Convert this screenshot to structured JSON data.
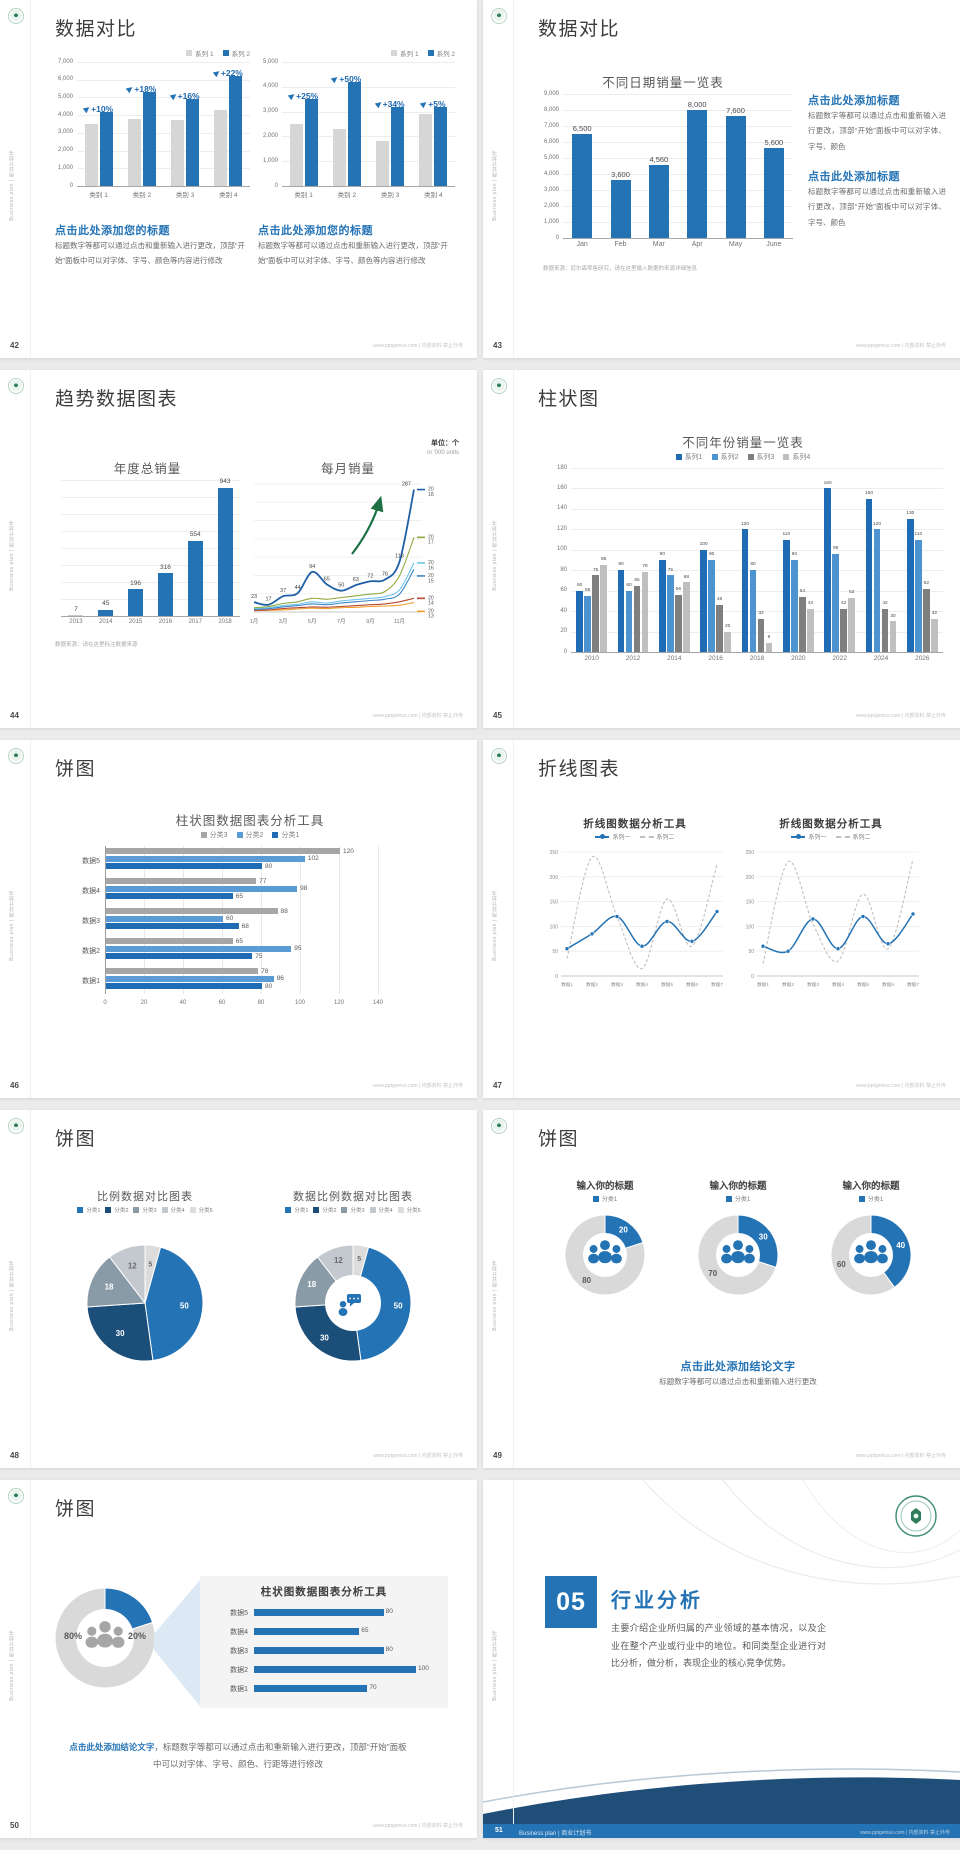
{
  "footer": {
    "site": "www.pptgenius.com | 内部资料 禁止外传"
  },
  "side_text": "Business plan | 商业计划书",
  "slides": {
    "s42": {
      "page": "42",
      "title": "数据对比",
      "legend": [
        "系列 1",
        "系列 2"
      ],
      "block_title": "点击此处添加您的标题",
      "block_body": "标题数字等都可以通过点击和重新输入进行更改，顶部“开始”面板中可以对字体、字号、颜色等内容进行修改",
      "chart_left": {
        "type": "column",
        "ymax": 7000,
        "yticks": [
          "7,000",
          "6,000",
          "5,000",
          "4,000",
          "3,000",
          "2,000",
          "1,000",
          "0"
        ],
        "categories": [
          "类别 1",
          "类别 2",
          "类别 3",
          "类别 4"
        ],
        "series": [
          {
            "name": "系列 1",
            "values": [
              3500,
              3800,
              3700,
              4300
            ]
          },
          {
            "name": "系列 2",
            "values": [
              4200,
              5300,
              4900,
              6200
            ]
          }
        ],
        "annotations": [
          "+10%",
          "+18%",
          "+16%",
          "+22%"
        ]
      },
      "chart_right": {
        "type": "column",
        "ymax": 5000,
        "yticks": [
          "5,000",
          "4,000",
          "3,000",
          "2,000",
          "1,000",
          "0"
        ],
        "categories": [
          "类别 1",
          "类别 2",
          "类别 3",
          "类别 4"
        ],
        "series": [
          {
            "name": "系列 1",
            "values": [
              2500,
              2300,
              1800,
              2900
            ]
          },
          {
            "name": "系列 2",
            "values": [
              3500,
              4200,
              3200,
              3200
            ]
          }
        ],
        "annotations": [
          "+25%",
          "+50%",
          "+34%",
          "+5%"
        ]
      }
    },
    "s43": {
      "page": "43",
      "title": "数据对比",
      "chart": {
        "type": "column",
        "title": "不同日期销量一览表",
        "ymax": 9000,
        "yticks": [
          "9,000",
          "8,000",
          "7,000",
          "6,000",
          "5,000",
          "4,000",
          "3,000",
          "2,000",
          "1,000",
          "0"
        ],
        "categories": [
          "Jan",
          "Feb",
          "Mar",
          "Apr",
          "May",
          "June"
        ],
        "values": [
          6500,
          3600,
          4560,
          8000,
          7600,
          5600
        ],
        "labels": [
          "6,500",
          "3,600",
          "4,560",
          "8,000",
          "7,600",
          "5,600"
        ]
      },
      "source": "数据来源：尼尔森零售研究，请在这里输入数据的来源详细信息",
      "blocks": [
        {
          "title": "点击此处添加标题",
          "body": "标题数字等都可以通过点击和重新输入进行更改，顶部“开始”面板中可以对字体、字号、颜色"
        },
        {
          "title": "点击此处添加标题",
          "body": "标题数字等都可以通过点击和重新输入进行更改，顶部“开始”面板中可以对字体、字号、颜色"
        }
      ]
    },
    "s44": {
      "page": "44",
      "title": "趋势数据图表",
      "unit_cn": "单位：个",
      "unit_en": "in '000 units",
      "chart_left": {
        "type": "column",
        "title": "年度总销量",
        "categories": [
          "2013",
          "2014",
          "2015",
          "2016",
          "2017",
          "2018"
        ],
        "values": [
          7,
          45,
          196,
          316,
          554,
          943
        ]
      },
      "chart_right": {
        "type": "line",
        "title": "每月销量",
        "x_labels": [
          "1月",
          "3月",
          "5月",
          "7月",
          "9月",
          "11月"
        ],
        "series": [
          {
            "name": "2018",
            "values": [
              23,
              17,
              37,
              44,
              94,
              65,
              50,
              63,
              72,
              76,
              118,
              287
            ]
          },
          {
            "name": "2017",
            "values": [
              10,
              13,
              20,
              24,
              32,
              30,
              34,
              38,
              42,
              48,
              85,
              175
            ]
          },
          {
            "name": "2016",
            "values": [
              8,
              10,
              15,
              18,
              24,
              21,
              26,
              29,
              32,
              36,
              52,
              115
            ]
          },
          {
            "name": "2015",
            "values": [
              6,
              8,
              12,
              15,
              19,
              17,
              21,
              24,
              27,
              30,
              42,
              100
            ]
          },
          {
            "name": "2014",
            "values": [
              4,
              5,
              8,
              10,
              12,
              11,
              13,
              15,
              17,
              19,
              24,
              32
            ]
          },
          {
            "name": "2013",
            "values": [
              3,
              4,
              5,
              7,
              9,
              8,
              10,
              11,
              13,
              14,
              16,
              22
            ]
          }
        ]
      },
      "source": "数据来源：请在这里标注数据来源"
    },
    "s45": {
      "page": "45",
      "title": "柱状图",
      "chart": {
        "type": "column",
        "title": "不同年份销量一览表",
        "legend": [
          "系列1",
          "系列2",
          "系列3",
          "系列4"
        ],
        "ymax": 180,
        "yticks": [
          "180",
          "160",
          "140",
          "120",
          "100",
          "80",
          "60",
          "40",
          "20",
          "0"
        ],
        "categories": [
          "2010",
          "2012",
          "2014",
          "2016",
          "2018",
          "2020",
          "2022",
          "2024",
          "2026"
        ],
        "series": [
          {
            "name": "系列1",
            "values": [
              60,
              80,
              90,
              100,
              120,
              110,
              160,
              150,
              130
            ]
          },
          {
            "name": "系列2",
            "values": [
              55,
              60,
              75,
              90,
              80,
              90,
              96,
              120,
              110
            ]
          },
          {
            "name": "系列3",
            "values": [
              75,
              65,
              56,
              46,
              32,
              54,
              42,
              42,
              62
            ]
          },
          {
            "name": "系列4",
            "values": [
              85,
              78,
              68,
              20,
              9,
              42,
              53,
              30,
              32
            ]
          }
        ]
      }
    },
    "s46": {
      "page": "46",
      "title": "饼图",
      "chart": {
        "type": "hbar",
        "title": "柱状图数据图表分析工具",
        "legend": [
          "分类3",
          "分类2",
          "分类1"
        ],
        "rows": [
          "数据5",
          "数据4",
          "数据3",
          "数据2",
          "数据1"
        ],
        "series": [
          {
            "name": "分类3",
            "values": [
              120,
              77,
              88,
              65,
              78
            ]
          },
          {
            "name": "分类2",
            "values": [
              102,
              98,
              60,
              95,
              86
            ]
          },
          {
            "name": "分类1",
            "values": [
              80,
              65,
              68,
              75,
              80
            ]
          }
        ],
        "xticks": [
          "0",
          "20",
          "40",
          "60",
          "80",
          "100",
          "120",
          "140"
        ],
        "xmax": 140
      }
    },
    "s47": {
      "page": "47",
      "title": "折线图表",
      "charts": [
        {
          "title": "折线图数据分析工具",
          "legend": [
            "系列一",
            "系列二"
          ],
          "ymax": 250,
          "yticks": [
            "250",
            "200",
            "150",
            "100",
            "50",
            "0"
          ],
          "x_labels": [
            "数据1",
            "数据2",
            "数据3",
            "数据4",
            "数据5",
            "数据6",
            "数据7"
          ],
          "series1": [
            55,
            85,
            120,
            60,
            110,
            70,
            130
          ],
          "series2": [
            35,
            240,
            120,
            15,
            155,
            60,
            225
          ]
        },
        {
          "title": "折线图数据分析工具",
          "legend": [
            "系列一",
            "系列二"
          ],
          "ymax": 250,
          "yticks": [
            "250",
            "200",
            "150",
            "100",
            "50",
            "0"
          ],
          "x_labels": [
            "数据1",
            "数据2",
            "数据3",
            "数据4",
            "数据5",
            "数据6",
            "数据7"
          ],
          "series1": [
            60,
            50,
            115,
            55,
            120,
            65,
            125
          ],
          "series2": [
            25,
            230,
            105,
            30,
            165,
            55,
            235
          ]
        }
      ]
    },
    "s48": {
      "page": "48",
      "title": "饼图",
      "chart_left": {
        "type": "pie",
        "title": "比例数据对比图表",
        "legend": [
          "分类1",
          "分类2",
          "分类3",
          "分类4",
          "分类5"
        ],
        "values": [
          50,
          30,
          18,
          12,
          5
        ]
      },
      "chart_right": {
        "type": "donut",
        "title": "数据比例数据对比图表",
        "legend": [
          "分类1",
          "分类2",
          "分类3",
          "分类4",
          "分类5"
        ],
        "values": [
          50,
          30,
          18,
          12,
          5
        ]
      }
    },
    "s49": {
      "page": "49",
      "title": "饼图",
      "charts": [
        {
          "title": "输入你的标题",
          "legend": "分类1",
          "value": 20,
          "rest": 80
        },
        {
          "title": "输入你的标题",
          "legend": "分类1",
          "value": 30,
          "rest": 70
        },
        {
          "title": "输入你的标题",
          "legend": "分类1",
          "value": 40,
          "rest": 60
        }
      ],
      "conclusion": "点击此处添加结论文字",
      "note": "标题数字等都可以通过点击和重新输入进行更改"
    },
    "s50": {
      "page": "50",
      "title": "饼图",
      "donut": {
        "labels": [
          "80%",
          "20%"
        ],
        "values": [
          80,
          20
        ]
      },
      "panel": {
        "title": "柱状图数据图表分析工具",
        "rows": [
          "数据5",
          "数据4",
          "数据3",
          "数据2",
          "数据1"
        ],
        "values": [
          80,
          65,
          80,
          100,
          70
        ]
      },
      "conclusion_lead": "点击此处添加结论文字",
      "conclusion_rest": "，标题数字等都可以通过点击和重新输入进行更改，顶部“开始”面板中可以对字体、字号、颜色、行距等进行修改"
    },
    "s51": {
      "page": "51",
      "number": "05",
      "title": "行业分析",
      "body": "主要介绍企业所归属的产业领域的基本情况，以及企业在整个产业或行业中的地位。和同类型企业进行对比分析，做分析，表现企业的核心竞争优势。",
      "footer": "Business plan | 商业计划书"
    }
  },
  "colors": {
    "blue": "#2473B5",
    "navy": "#1F4E79",
    "gray_bar": "#D6D6D6",
    "light_blue": "#5B9BD5",
    "mid_gray": "#A6A6A6",
    "s45_series": [
      "#1F6CB4",
      "#4D93CF",
      "#7F7F7F",
      "#BFBFBF"
    ],
    "line_years": {
      "2018": "#1F5FA8",
      "2017": "#8FAA3C",
      "2016": "#6EC3E8",
      "2015": "#3D85C8",
      "2014": "#B5492F",
      "2013": "#F0A030"
    },
    "pie": [
      "#2473B5",
      "#1B4E79",
      "#8A9BA8",
      "#C3C9CE",
      "#DCDCDC"
    ],
    "donut_gray": "#D9D9D9",
    "arrow_green": "#1E7145"
  }
}
